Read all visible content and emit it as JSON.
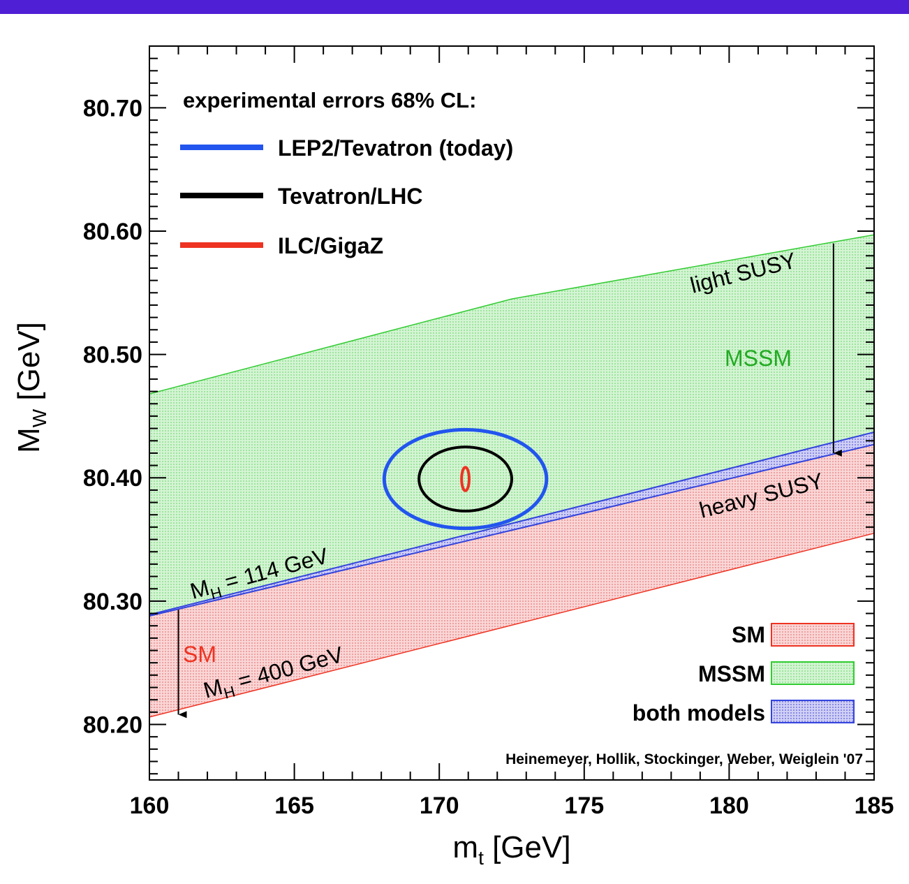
{
  "colors": {
    "banner": "#4f1fd6",
    "sm_fill": "#f7c8c8",
    "sm_line": "#ee3322",
    "mssm_fill": "#c9f0c9",
    "mssm_line": "#33cc33",
    "both_fill": "#b8b8ee",
    "both_line": "#3344dd",
    "lep2_line": "#2255ee",
    "tevatron_line": "#000000",
    "ilc_line": "#ee3322",
    "mssm_text": "#22aa22",
    "sm_text": "#ee3322",
    "both_text": "#2244ee"
  },
  "chart_data": {
    "type": "area",
    "xlabel": "m",
    "xlabel_sub": "t",
    "xlabel_unit": " [GeV]",
    "ylabel": "M",
    "ylabel_sub": "W",
    "ylabel_unit": " [GeV]",
    "xlim": [
      160,
      185
    ],
    "ylim": [
      80.155,
      80.75
    ],
    "x_ticks": [
      160,
      165,
      170,
      175,
      180,
      185
    ],
    "x_tick_labels": [
      "160",
      "165",
      "170",
      "175",
      "180",
      "185"
    ],
    "y_ticks": [
      80.2,
      80.3,
      80.4,
      80.5,
      80.6,
      80.7
    ],
    "y_tick_labels": [
      "80.20",
      "80.30",
      "80.40",
      "80.50",
      "80.60",
      "80.70"
    ],
    "bands": [
      {
        "name": "MSSM",
        "lower": [
          [
            160,
            80.289
          ],
          [
            185,
            80.437
          ]
        ],
        "upper": [
          [
            160,
            80.468
          ],
          [
            172.5,
            80.545
          ],
          [
            185,
            80.597
          ]
        ]
      },
      {
        "name": "SM",
        "lower": [
          [
            160,
            80.206
          ],
          [
            185,
            80.355
          ]
        ],
        "upper": [
          [
            160,
            80.288
          ],
          [
            185,
            80.427
          ]
        ]
      },
      {
        "name": "both models",
        "lower": [
          [
            160,
            80.288
          ],
          [
            185,
            80.427
          ]
        ],
        "upper": [
          [
            160,
            80.289
          ],
          [
            185,
            80.437
          ]
        ]
      }
    ],
    "ellipses": [
      {
        "name": "LEP2/Tevatron (today)",
        "cx": 170.9,
        "cy": 80.399,
        "rx": 2.8,
        "ry": 0.04
      },
      {
        "name": "Tevatron/LHC",
        "cx": 170.9,
        "cy": 80.399,
        "rx": 1.6,
        "ry": 0.026
      },
      {
        "name": "ILC/GigaZ",
        "cx": 170.9,
        "cy": 80.399,
        "rx": 0.13,
        "ry": 0.0095
      }
    ],
    "legend_title": "experimental errors 68% CL:",
    "legend": [
      "LEP2/Tevatron (today)",
      "Tevatron/LHC",
      "ILC/GigaZ"
    ],
    "band_legend": [
      "SM",
      "MSSM",
      "both models"
    ],
    "annotations": {
      "light_susy": "light SUSY",
      "heavy_susy": "heavy SUSY",
      "mssm_label": "MSSM",
      "sm_label": "SM",
      "mh114_main": "M",
      "mh114_sub": "H",
      "mh114_rest": " = 114 GeV",
      "mh400_main": "M",
      "mh400_sub": "H",
      "mh400_rest": " = 400 GeV",
      "credit": "Heinemeyer, Hollik, Stockinger, Weber, Weiglein '07"
    },
    "arrows": [
      {
        "name": "mssm-range",
        "x": 183.6,
        "y_from": 80.59,
        "y_to": 80.42
      },
      {
        "name": "sm-range",
        "x": 161.0,
        "y_from": 80.293,
        "y_to": 80.208
      }
    ]
  }
}
